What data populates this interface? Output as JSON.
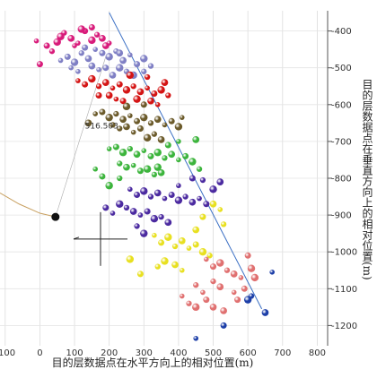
{
  "chart_data": {
    "type": "scatter",
    "xlabel": "目的层数据点在水平方向上的相对位置(m)",
    "ylabel": "目的层数据点在垂直方向上的相对位置(m)",
    "x_ticks": [
      -100,
      0,
      100,
      200,
      300,
      400,
      500,
      600,
      700,
      800
    ],
    "y_ticks": [
      -400,
      -500,
      -600,
      -700,
      -800,
      -900,
      -1000,
      -1100,
      -1200
    ],
    "xlim": [
      -115,
      830
    ],
    "ylim": [
      -1255,
      -345
    ],
    "annotation": "516.503",
    "colors": {
      "magenta": "#d81b7a",
      "lavender": "#7f7fc4",
      "red": "#d41414",
      "olive": "#6b5a2a",
      "green": "#3cb43c",
      "purple": "#4b2aa0",
      "yellow": "#e8e020",
      "pink": "#e07070",
      "blue": "#1d3fa8",
      "well": "#111111"
    },
    "trajectory_line": [
      [
        200,
        -350
      ],
      [
        640,
        -1155
      ]
    ],
    "curve_line": [
      [
        -115,
        -840
      ],
      [
        -60,
        -870
      ],
      [
        0,
        -895
      ],
      [
        45,
        -905
      ]
    ],
    "well_point": [
      45,
      -905
    ],
    "series": [
      {
        "color": "magenta",
        "points": [
          [
            -10,
            -427
          ],
          [
            20,
            -440
          ],
          [
            50,
            -430
          ],
          [
            70,
            -405
          ],
          [
            90,
            -420
          ],
          [
            110,
            -433
          ],
          [
            130,
            -400
          ],
          [
            150,
            -425
          ],
          [
            165,
            -410
          ],
          [
            180,
            -420
          ],
          [
            200,
            -433
          ],
          [
            150,
            -390
          ],
          [
            120,
            -395
          ],
          [
            35,
            -455
          ],
          [
            190,
            -440
          ],
          [
            100,
            -440
          ],
          [
            0,
            -490
          ],
          [
            60,
            -415
          ]
        ]
      },
      {
        "color": "lavender",
        "points": [
          [
            60,
            -480
          ],
          [
            80,
            -470
          ],
          [
            100,
            -485
          ],
          [
            120,
            -460
          ],
          [
            140,
            -475
          ],
          [
            160,
            -450
          ],
          [
            180,
            -460
          ],
          [
            200,
            -470
          ],
          [
            220,
            -455
          ],
          [
            240,
            -480
          ],
          [
            260,
            -465
          ],
          [
            280,
            -490
          ],
          [
            300,
            -475
          ],
          [
            320,
            -495
          ],
          [
            150,
            -495
          ],
          [
            170,
            -505
          ],
          [
            190,
            -500
          ],
          [
            230,
            -500
          ],
          [
            250,
            -510
          ],
          [
            210,
            -520
          ],
          [
            90,
            -500
          ],
          [
            130,
            -445
          ],
          [
            270,
            -520
          ],
          [
            300,
            -510
          ],
          [
            230,
            -460
          ],
          [
            110,
            -510
          ]
        ]
      },
      {
        "color": "red",
        "points": [
          [
            110,
            -535
          ],
          [
            130,
            -545
          ],
          [
            150,
            -530
          ],
          [
            170,
            -550
          ],
          [
            190,
            -540
          ],
          [
            210,
            -555
          ],
          [
            230,
            -545
          ],
          [
            250,
            -560
          ],
          [
            270,
            -550
          ],
          [
            290,
            -565
          ],
          [
            310,
            -555
          ],
          [
            330,
            -570
          ],
          [
            350,
            -560
          ],
          [
            370,
            -575
          ],
          [
            200,
            -575
          ],
          [
            220,
            -585
          ],
          [
            240,
            -590
          ],
          [
            280,
            -585
          ],
          [
            300,
            -600
          ],
          [
            320,
            -590
          ],
          [
            340,
            -600
          ],
          [
            170,
            -575
          ],
          [
            260,
            -520
          ],
          [
            310,
            -525
          ],
          [
            360,
            -540
          ]
        ]
      },
      {
        "color": "olive",
        "points": [
          [
            160,
            -625
          ],
          [
            180,
            -620
          ],
          [
            200,
            -635
          ],
          [
            220,
            -625
          ],
          [
            240,
            -640
          ],
          [
            260,
            -630
          ],
          [
            280,
            -645
          ],
          [
            300,
            -635
          ],
          [
            320,
            -650
          ],
          [
            340,
            -640
          ],
          [
            360,
            -655
          ],
          [
            380,
            -645
          ],
          [
            400,
            -660
          ],
          [
            230,
            -665
          ],
          [
            250,
            -660
          ],
          [
            270,
            -675
          ],
          [
            290,
            -665
          ],
          [
            310,
            -690
          ],
          [
            330,
            -680
          ],
          [
            350,
            -695
          ],
          [
            410,
            -635
          ],
          [
            300,
            -600
          ],
          [
            250,
            -605
          ],
          [
            210,
            -655
          ],
          [
            140,
            -650
          ]
        ]
      },
      {
        "color": "green",
        "points": [
          [
            200,
            -720
          ],
          [
            220,
            -715
          ],
          [
            240,
            -730
          ],
          [
            260,
            -720
          ],
          [
            280,
            -735
          ],
          [
            300,
            -725
          ],
          [
            320,
            -740
          ],
          [
            340,
            -730
          ],
          [
            360,
            -745
          ],
          [
            380,
            -735
          ],
          [
            400,
            -750
          ],
          [
            420,
            -740
          ],
          [
            440,
            -755
          ],
          [
            230,
            -760
          ],
          [
            250,
            -770
          ],
          [
            270,
            -765
          ],
          [
            290,
            -780
          ],
          [
            310,
            -775
          ],
          [
            330,
            -790
          ],
          [
            350,
            -785
          ],
          [
            160,
            -775
          ],
          [
            180,
            -795
          ],
          [
            200,
            -820
          ],
          [
            230,
            -800
          ],
          [
            450,
            -695
          ],
          [
            400,
            -700
          ],
          [
            370,
            -710
          ],
          [
            340,
            -770
          ],
          [
            460,
            -775
          ]
        ]
      },
      {
        "color": "purple",
        "points": [
          [
            260,
            -830
          ],
          [
            280,
            -845
          ],
          [
            300,
            -835
          ],
          [
            320,
            -850
          ],
          [
            340,
            -840
          ],
          [
            360,
            -855
          ],
          [
            380,
            -845
          ],
          [
            400,
            -860
          ],
          [
            420,
            -850
          ],
          [
            440,
            -865
          ],
          [
            460,
            -855
          ],
          [
            480,
            -870
          ],
          [
            230,
            -870
          ],
          [
            250,
            -880
          ],
          [
            270,
            -890
          ],
          [
            290,
            -900
          ],
          [
            310,
            -890
          ],
          [
            330,
            -910
          ],
          [
            350,
            -905
          ],
          [
            370,
            -920
          ],
          [
            210,
            -895
          ],
          [
            190,
            -880
          ],
          [
            500,
            -830
          ],
          [
            470,
            -805
          ],
          [
            520,
            -810
          ],
          [
            400,
            -820
          ],
          [
            440,
            -800
          ],
          [
            300,
            -950
          ],
          [
            280,
            -930
          ]
        ]
      },
      {
        "color": "yellow",
        "points": [
          [
            330,
            -955
          ],
          [
            350,
            -975
          ],
          [
            370,
            -960
          ],
          [
            390,
            -985
          ],
          [
            410,
            -970
          ],
          [
            430,
            -990
          ],
          [
            450,
            -980
          ],
          [
            470,
            -1000
          ],
          [
            490,
            -1010
          ],
          [
            500,
            -870
          ],
          [
            520,
            -885
          ],
          [
            470,
            -905
          ],
          [
            360,
            -1025
          ],
          [
            340,
            -1040
          ],
          [
            390,
            -1035
          ],
          [
            410,
            -1050
          ],
          [
            290,
            -1060
          ],
          [
            260,
            -1020
          ],
          [
            530,
            -925
          ],
          [
            450,
            -940
          ]
        ]
      },
      {
        "color": "pink",
        "points": [
          [
            480,
            -1020
          ],
          [
            500,
            -1040
          ],
          [
            520,
            -1030
          ],
          [
            540,
            -1050
          ],
          [
            560,
            -1060
          ],
          [
            580,
            -1070
          ],
          [
            600,
            -1010
          ],
          [
            610,
            -1045
          ],
          [
            500,
            -1080
          ],
          [
            520,
            -1095
          ],
          [
            470,
            -1110
          ],
          [
            480,
            -1130
          ],
          [
            450,
            -1150
          ],
          [
            430,
            -1140
          ],
          [
            500,
            -1150
          ],
          [
            560,
            -1110
          ],
          [
            570,
            -1130
          ],
          [
            620,
            -1070
          ],
          [
            450,
            -1090
          ],
          [
            530,
            -1160
          ],
          [
            410,
            -1120
          ],
          [
            590,
            -1100
          ]
        ]
      },
      {
        "color": "blue",
        "points": [
          [
            450,
            -1235
          ],
          [
            530,
            -1200
          ],
          [
            600,
            -1130
          ],
          [
            610,
            -1120
          ],
          [
            650,
            -1165
          ],
          [
            670,
            -1055
          ]
        ]
      }
    ]
  }
}
